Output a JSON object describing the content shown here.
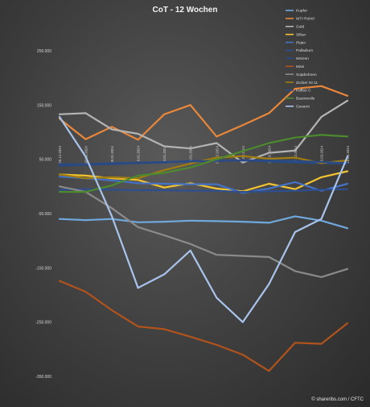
{
  "chart_data": {
    "type": "line",
    "title": "CoT - 12 Wochen",
    "xlabel": "",
    "ylabel": "",
    "ylim": [
      -350000,
      250000
    ],
    "y_ticks": [
      "250.000",
      "150.000",
      "50.000",
      "-50.000",
      "-150.000",
      "-250.000",
      "-350.000"
    ],
    "y_tick_values": [
      250000,
      150000,
      50000,
      -50000,
      -150000,
      -250000,
      -350000
    ],
    "categories": [
      "26.12.2023",
      "02.01.2024",
      "09.01.2024",
      "16.01.2024",
      "23.01.2024",
      "30.01.2024",
      "06.02.2024",
      "13.02.2024",
      "20.02.2024",
      "27.02.2024",
      "05.03.2024",
      "12.03.2024"
    ],
    "legend_position": "right",
    "grid": false,
    "series": [
      {
        "name": "Kupfer",
        "color": "#6fa8dc",
        "values": [
          -60000,
          -62000,
          -60000,
          -66000,
          -65000,
          -63000,
          -64000,
          -65000,
          -67000,
          -55000,
          -63000,
          -77000
        ]
      },
      {
        "name": "WTI Rohöl",
        "color": "#e8873a",
        "values": [
          125000,
          87000,
          110000,
          86000,
          133000,
          150000,
          92000,
          113000,
          135000,
          180000,
          185000,
          167000
        ]
      },
      {
        "name": "Gold",
        "color": "#b4b4b4",
        "values": [
          133000,
          135000,
          105000,
          97000,
          74000,
          70000,
          80000,
          44000,
          62000,
          66000,
          128000,
          158000
        ]
      },
      {
        "name": "Silber",
        "color": "#f4c430",
        "values": [
          22000,
          20000,
          15000,
          12000,
          -2000,
          6000,
          -4000,
          -9000,
          5000,
          -5000,
          17000,
          28000
        ]
      },
      {
        "name": "Platin",
        "color": "#4472c4",
        "values": [
          18000,
          15000,
          11000,
          6000,
          5000,
          4000,
          4000,
          -12000,
          -4000,
          8000,
          -8000,
          5000
        ]
      },
      {
        "name": "Palladium",
        "color": "#2e4f8f",
        "values": [
          -6000,
          -5000,
          -6000,
          -7000,
          -7000,
          -8000,
          -8000,
          -10000,
          -9000,
          -8000,
          -6000,
          -5000
        ]
      },
      {
        "name": "Weizen",
        "color": "#264b82",
        "values": [
          38000,
          40000,
          41000,
          43000,
          44000,
          47000,
          47000,
          48000,
          46000,
          44000,
          43000,
          42000
        ]
      },
      {
        "name": "Mais",
        "color": "#b0531c",
        "values": [
          -174000,
          -194000,
          -228000,
          -258000,
          -263000,
          -277000,
          -292000,
          -310000,
          -340000,
          -288000,
          -290000,
          -252000
        ]
      },
      {
        "name": "Sojabohnen",
        "color": "#8a8a8a",
        "values": [
          0,
          -10000,
          -40000,
          -75000,
          -90000,
          -106000,
          -126000,
          -128000,
          -130000,
          -156000,
          -167000,
          -152000
        ]
      },
      {
        "name": "Zucker Nr.11",
        "color": "#a07d10",
        "values": [
          22000,
          15000,
          17000,
          15000,
          30000,
          42000,
          53000,
          56000,
          51000,
          53000,
          43000,
          48000
        ]
      },
      {
        "name": "Kaffee C",
        "color": "#2b4a85",
        "values": [
          41000,
          41000,
          43000,
          44000,
          45000,
          46000,
          47000,
          48000,
          48000,
          47000,
          45000,
          43000
        ]
      },
      {
        "name": "Baumwolle",
        "color": "#4c8a2e",
        "values": [
          -10000,
          -10000,
          2000,
          20000,
          25000,
          35000,
          50000,
          65000,
          80000,
          90000,
          95000,
          92000
        ]
      },
      {
        "name": "Gesamt",
        "color": "#a9c4ec",
        "values": [
          128000,
          55000,
          -55000,
          -187000,
          -162000,
          -118000,
          -205000,
          -250000,
          -180000,
          -84000,
          -60000,
          55000
        ]
      }
    ]
  },
  "source": "© shareribs.com / CFTC"
}
